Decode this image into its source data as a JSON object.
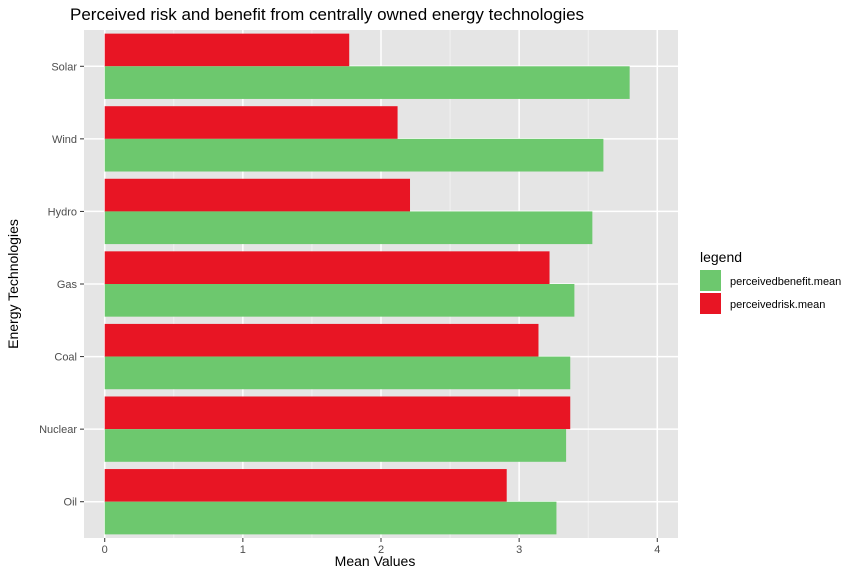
{
  "chart_data": {
    "type": "bar",
    "orientation": "horizontal",
    "title": "Perceived risk and benefit from centrally owned energy technologies",
    "xlabel": "Mean Values",
    "ylabel": "Energy Technologies",
    "categories": [
      "Solar",
      "Wind",
      "Hydro",
      "Gas",
      "Coal",
      "Nuclear",
      "Oil"
    ],
    "xlim": [
      -0.15,
      4.15
    ],
    "x_ticks": [
      "0",
      "1",
      "2",
      "3",
      "4"
    ],
    "series": [
      {
        "name": "perceivedbenefit.mean",
        "color": "#6DC86E",
        "values": [
          3.8,
          3.61,
          3.53,
          3.4,
          3.37,
          3.34,
          3.27
        ]
      },
      {
        "name": "perceivedrisk.mean",
        "color": "#E81524",
        "values": [
          1.77,
          2.12,
          2.21,
          3.22,
          3.14,
          3.37,
          2.91
        ]
      }
    ],
    "grid": true,
    "panel_background": "#E5E5E5",
    "legend": {
      "title": "legend",
      "placement": "right"
    }
  }
}
